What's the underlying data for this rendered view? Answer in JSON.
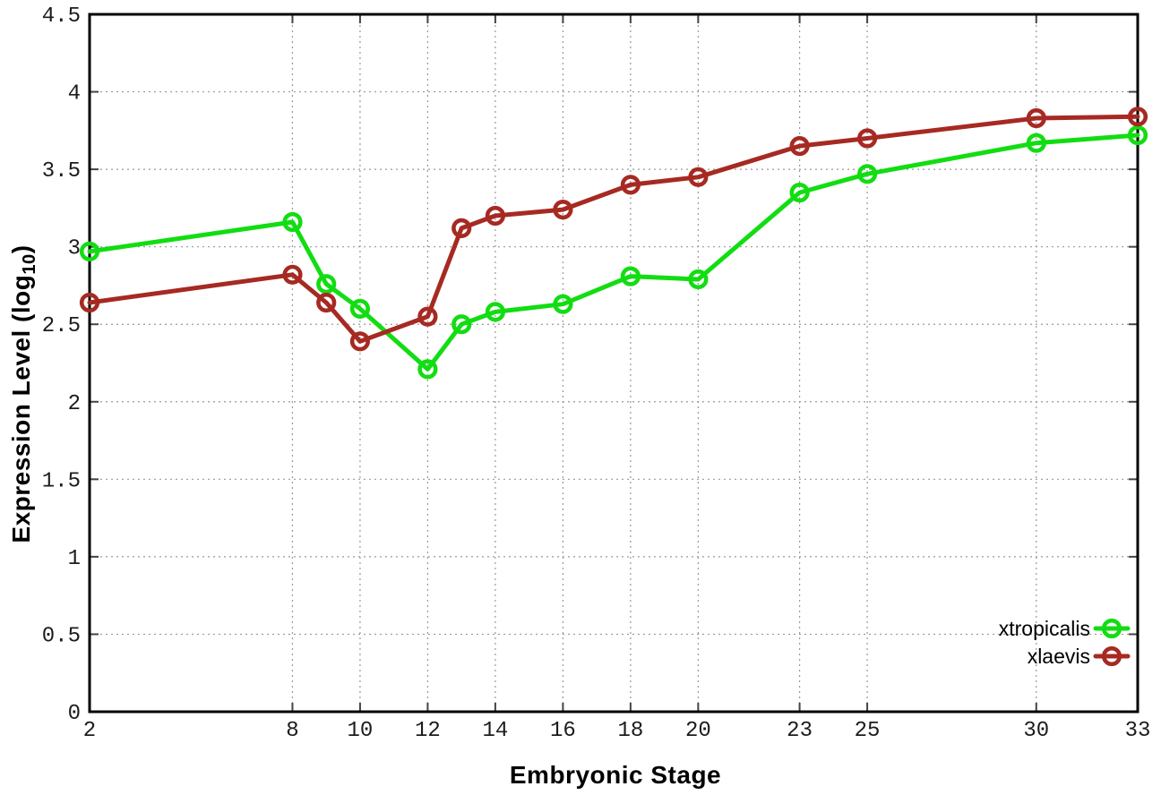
{
  "page": {
    "background": "#ffffff"
  },
  "y_title": {
    "main": "Expression Level (log",
    "sub": "10",
    "close": ")"
  },
  "chart_data": {
    "type": "line",
    "title": "",
    "xlabel": "Embryonic Stage",
    "ylabel": "Expression Level (log10)",
    "xlim": [
      2,
      33
    ],
    "ylim": [
      0,
      4.5
    ],
    "x_ticks": [
      2,
      8,
      10,
      12,
      14,
      16,
      18,
      20,
      23,
      25,
      30,
      33
    ],
    "y_ticks": [
      0,
      0.5,
      1,
      1.5,
      2,
      2.5,
      3,
      3.5,
      4,
      4.5
    ],
    "grid": true,
    "legend_position": "bottom-right-inside",
    "axis_color": "#000000",
    "grid_color": "#999999",
    "series": [
      {
        "name": "xtropicalis",
        "color": "#12dd12",
        "marker": "open-circle",
        "x": [
          2,
          8,
          9,
          10,
          12,
          13,
          14,
          16,
          18,
          20,
          23,
          25,
          30,
          33
        ],
        "y": [
          2.97,
          3.16,
          2.76,
          2.6,
          2.21,
          2.5,
          2.58,
          2.63,
          2.81,
          2.79,
          3.35,
          3.47,
          3.67,
          3.72
        ]
      },
      {
        "name": "xlaevis",
        "color": "#a62a22",
        "marker": "open-circle",
        "x": [
          2,
          8,
          9,
          10,
          12,
          13,
          14,
          16,
          18,
          20,
          23,
          25,
          30,
          33
        ],
        "y": [
          2.64,
          2.82,
          2.64,
          2.39,
          2.55,
          3.12,
          3.2,
          3.24,
          3.4,
          3.45,
          3.65,
          3.7,
          3.83,
          3.84
        ]
      }
    ]
  }
}
